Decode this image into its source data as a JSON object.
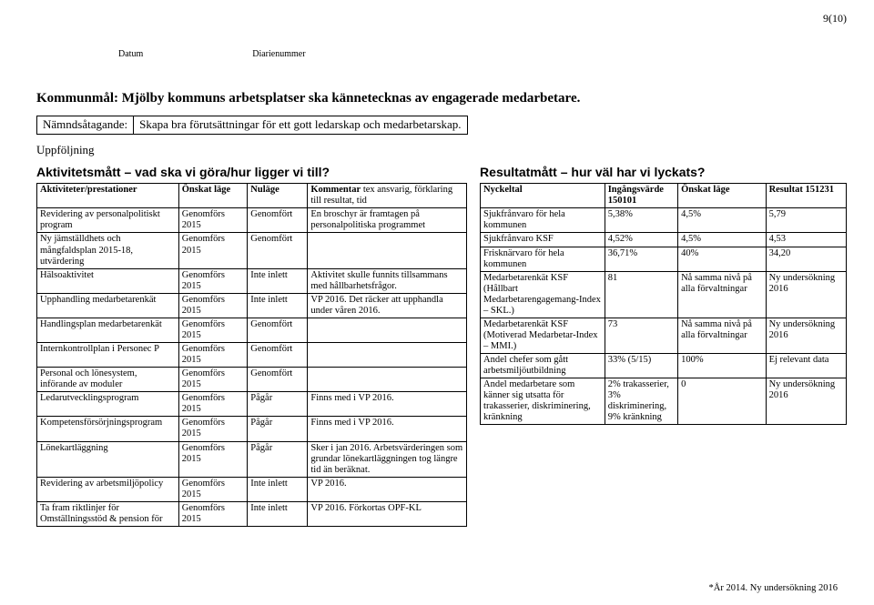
{
  "meta": {
    "page_number_label": "9(10)",
    "datum_label": "Datum",
    "diarienummer_label": "Diarienummer"
  },
  "kommunmal": {
    "label": "Kommunmål:",
    "text": "Mjölby kommuns arbetsplatser ska kännetecknas av engagerade medarbetare."
  },
  "namnd": {
    "label": "Nämndsåtagande:",
    "text": "Skapa bra förutsättningar för ett gott ledarskap och medarbetarskap."
  },
  "uppfoljning": "Uppföljning",
  "left": {
    "title": "Aktivitetsmått – vad ska vi göra/hur ligger vi till?",
    "head": {
      "c1": "Aktiviteter/prestationer",
      "c2": "Önskat läge",
      "c3": "Nuläge",
      "c4_a": "Kommentar",
      "c4_b": " tex ansvarig, förklaring till resultat, tid"
    },
    "rows": [
      {
        "c1": "Revidering av personalpolitiskt program",
        "c2": "Genomförs 2015",
        "c3": "Genomfört",
        "c4": "En broschyr är framtagen på personalpolitiska programmet"
      },
      {
        "c1": "Ny jämställdhets och mångfaldsplan 2015-18, utvärdering",
        "c2": "Genomförs 2015",
        "c3": "Genomfört",
        "c4": ""
      },
      {
        "c1": "Hälsoaktivitet",
        "c2": "Genomförs 2015",
        "c3": "Inte inlett",
        "c4": "Aktivitet skulle funnits tillsammans med hållbarhetsfrågor."
      },
      {
        "c1": "Upphandling medarbetarenkät",
        "c2": "Genomförs 2015",
        "c3": "Inte inlett",
        "c4": "VP 2016. Det räcker att upphandla under våren 2016."
      },
      {
        "c1": "Handlingsplan medarbetarenkät",
        "c2": "Genomförs 2015",
        "c3": "Genomfört",
        "c4": ""
      },
      {
        "c1": "Internkontrollplan i Personec P",
        "c2": "Genomförs 2015",
        "c3": "Genomfört",
        "c4": ""
      },
      {
        "c1": "Personal och lönesystem, införande av moduler",
        "c2": "Genomförs 2015",
        "c3": "Genomfört",
        "c4": ""
      },
      {
        "c1": "Ledarutvecklingsprogram",
        "c2": "Genomförs 2015",
        "c3": "Pågår",
        "c4": "Finns med i VP 2016."
      },
      {
        "c1": "Kompetensförsörjningsprogram",
        "c2": "Genomförs 2015",
        "c3": "Pågår",
        "c4": "Finns med i VP 2016."
      },
      {
        "c1": "Lönekartläggning",
        "c2": "Genomförs 2015",
        "c3": "Pågår",
        "c4": "Sker i jan 2016. Arbetsvärderingen som grundar lönekartläggningen tog längre tid än beräknat."
      },
      {
        "c1": "Revidering av arbetsmiljöpolicy",
        "c2": "Genomförs 2015",
        "c3": "Inte inlett",
        "c4": "VP 2016."
      },
      {
        "c1": "Ta fram riktlinjer för Omställningsstöd & pension för",
        "c2": "Genomförs 2015",
        "c3": "Inte inlett",
        "c4": "VP 2016. Förkortas OPF-KL"
      }
    ]
  },
  "right": {
    "title": "Resultatmått – hur väl har vi lyckats?",
    "head": {
      "c1": "Nyckeltal",
      "c2": "Ingångsvärde 150101",
      "c3": "Önskat läge",
      "c4": "Resultat 151231"
    },
    "rows": [
      {
        "c1": "Sjukfrånvaro för hela kommunen",
        "c2": "5,38%",
        "c3": "4,5%",
        "c4": "5,79"
      },
      {
        "c1": "Sjukfrånvaro KSF",
        "c2": "4,52%",
        "c3": "4,5%",
        "c4": "4,53"
      },
      {
        "c1": "Frisknärvaro för hela kommunen",
        "c2": "36,71%",
        "c3": "40%",
        "c4": "34,20"
      },
      {
        "c1": "Medarbetarenkät KSF (Hållbart Medarbetarengagemang-Index – SKL.)",
        "c2": "81",
        "c3": "Nå samma nivå på alla förvaltningar",
        "c4": "Ny undersökning 2016"
      },
      {
        "c1": "Medarbetarenkät KSF (Motiverad Medarbetar-Index – MMI.)",
        "c2": "73",
        "c3": "Nå samma nivå på alla förvaltningar",
        "c4": "Ny undersökning 2016"
      },
      {
        "c1": "Andel chefer som gått arbetsmiljöutbildning",
        "c2": "33% (5/15)",
        "c3": "100%",
        "c4": "Ej relevant data"
      },
      {
        "c1": "Andel medarbetare som känner sig utsatta för trakasserier, diskriminering, kränkning",
        "c2": "2% trakasserier, 3% diskriminering, 9% kränkning",
        "c3": "0",
        "c4": "Ny undersökning 2016"
      }
    ]
  },
  "footnote": "*År 2014. Ny undersökning 2016"
}
